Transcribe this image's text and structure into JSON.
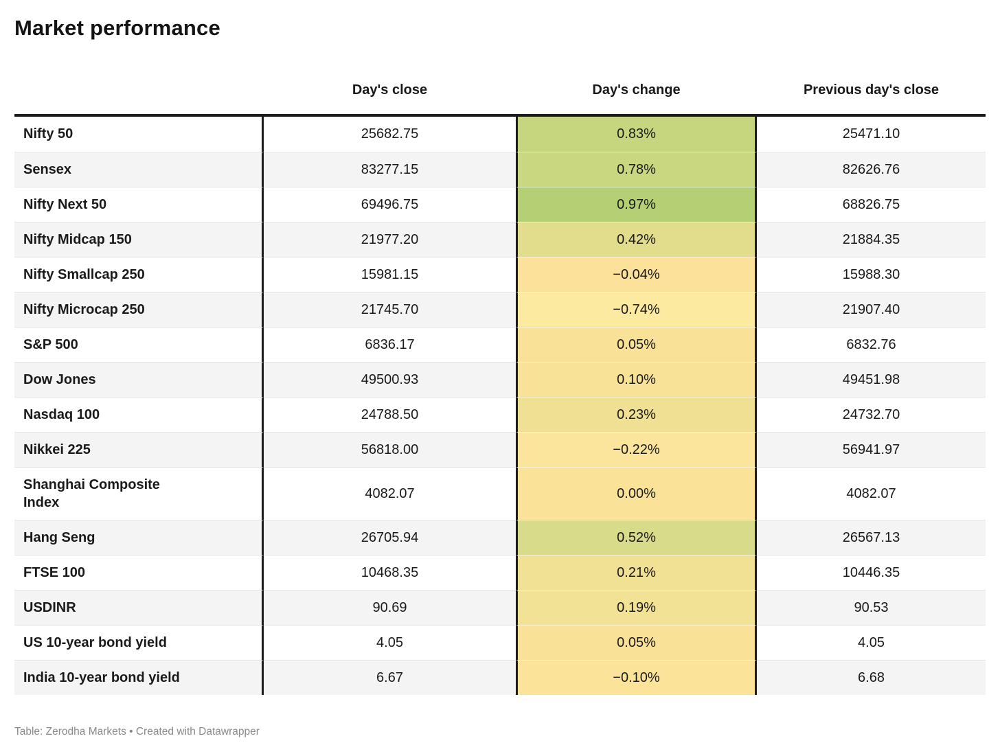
{
  "title": "Market performance",
  "columns": {
    "close": "Day's close",
    "change": "Day's change",
    "prev": "Previous day's close"
  },
  "table": {
    "rows": [
      {
        "label": "Nifty 50",
        "close": "25682.75",
        "change": "0.83%",
        "prev": "25471.10",
        "change_color": "#c6d67e"
      },
      {
        "label": "Sensex",
        "close": "83277.15",
        "change": "0.78%",
        "prev": "82626.76",
        "change_color": "#c8d780"
      },
      {
        "label": "Nifty Next 50",
        "close": "69496.75",
        "change": "0.97%",
        "prev": "68826.75",
        "change_color": "#b5d074"
      },
      {
        "label": "Nifty Midcap 150",
        "close": "21977.20",
        "change": "0.42%",
        "prev": "21884.35",
        "change_color": "#e2dd8c"
      },
      {
        "label": "Nifty Smallcap 250",
        "close": "15981.15",
        "change": "−0.04%",
        "prev": "15988.30",
        "change_color": "#fce19a"
      },
      {
        "label": "Nifty Microcap 250",
        "close": "21745.70",
        "change": "−0.74%",
        "prev": "21907.40",
        "change_color": "#fdeaa1"
      },
      {
        "label": "S&P 500",
        "close": "6836.17",
        "change": "0.05%",
        "prev": "6832.76",
        "change_color": "#f9e298"
      },
      {
        "label": "Dow Jones",
        "close": "49500.93",
        "change": "0.10%",
        "prev": "49451.98",
        "change_color": "#f8e297"
      },
      {
        "label": "Nasdaq 100",
        "close": "24788.50",
        "change": "0.23%",
        "prev": "24732.70",
        "change_color": "#efe093"
      },
      {
        "label": "Nikkei 225",
        "close": "56818.00",
        "change": "−0.22%",
        "prev": "56941.97",
        "change_color": "#fbe59c"
      },
      {
        "label": "Shanghai Composite\nIndex",
        "close": "4082.07",
        "change": "0.00%",
        "prev": "4082.07",
        "change_color": "#fae399"
      },
      {
        "label": "Hang Seng",
        "close": "26705.94",
        "change": "0.52%",
        "prev": "26567.13",
        "change_color": "#d8db8a"
      },
      {
        "label": "FTSE 100",
        "close": "10468.35",
        "change": "0.21%",
        "prev": "10446.35",
        "change_color": "#f0e195"
      },
      {
        "label": "USDINR",
        "close": "90.69",
        "change": "0.19%",
        "prev": "90.53",
        "change_color": "#f2e296"
      },
      {
        "label": "US 10-year bond yield",
        "close": "4.05",
        "change": "0.05%",
        "prev": "4.05",
        "change_color": "#f9e298"
      },
      {
        "label": "India 10-year bond yield",
        "close": "6.67",
        "change": "−0.10%",
        "prev": "6.68",
        "change_color": "#fbe49a"
      }
    ]
  },
  "footer": {
    "text": "Table: Zerodha Markets • Created with Datawrapper"
  },
  "colors": {
    "table_border": "#1c1c1c",
    "row_alt_bg": "#f4f4f4",
    "row_separator": "#e4e4e4",
    "footer_text": "#8a8a8a",
    "change_scale_max_green": "#b5d074",
    "change_scale_min_yellow": "#fdeaa1"
  },
  "chart_data": {
    "type": "table",
    "title": "Market performance",
    "columns": [
      "",
      "Day's close",
      "Day's change",
      "Previous day's close"
    ],
    "rows": [
      [
        "Nifty 50",
        25682.75,
        0.83,
        25471.1
      ],
      [
        "Sensex",
        83277.15,
        0.78,
        82626.76
      ],
      [
        "Nifty Next 50",
        69496.75,
        0.97,
        68826.75
      ],
      [
        "Nifty Midcap 150",
        21977.2,
        0.42,
        21884.35
      ],
      [
        "Nifty Smallcap 250",
        15981.15,
        -0.04,
        15988.3
      ],
      [
        "Nifty Microcap 250",
        21745.7,
        -0.74,
        21907.4
      ],
      [
        "S&P 500",
        6836.17,
        0.05,
        6832.76
      ],
      [
        "Dow Jones",
        49500.93,
        0.1,
        49451.98
      ],
      [
        "Nasdaq 100",
        24788.5,
        0.23,
        24732.7
      ],
      [
        "Nikkei 225",
        56818.0,
        -0.22,
        56941.97
      ],
      [
        "Shanghai Composite Index",
        4082.07,
        0.0,
        4082.07
      ],
      [
        "Hang Seng",
        26705.94,
        0.52,
        26567.13
      ],
      [
        "FTSE 100",
        10468.35,
        0.21,
        10446.35
      ],
      [
        "USDINR",
        90.69,
        0.19,
        90.53
      ],
      [
        "US 10-year bond yield",
        4.05,
        0.05,
        4.05
      ],
      [
        "India 10-year bond yield",
        6.67,
        -0.1,
        6.68
      ]
    ],
    "notes": "Day's change column is color-scaled from light yellow (negative) to green (positive)",
    "source": "Table: Zerodha Markets • Created with Datawrapper"
  }
}
